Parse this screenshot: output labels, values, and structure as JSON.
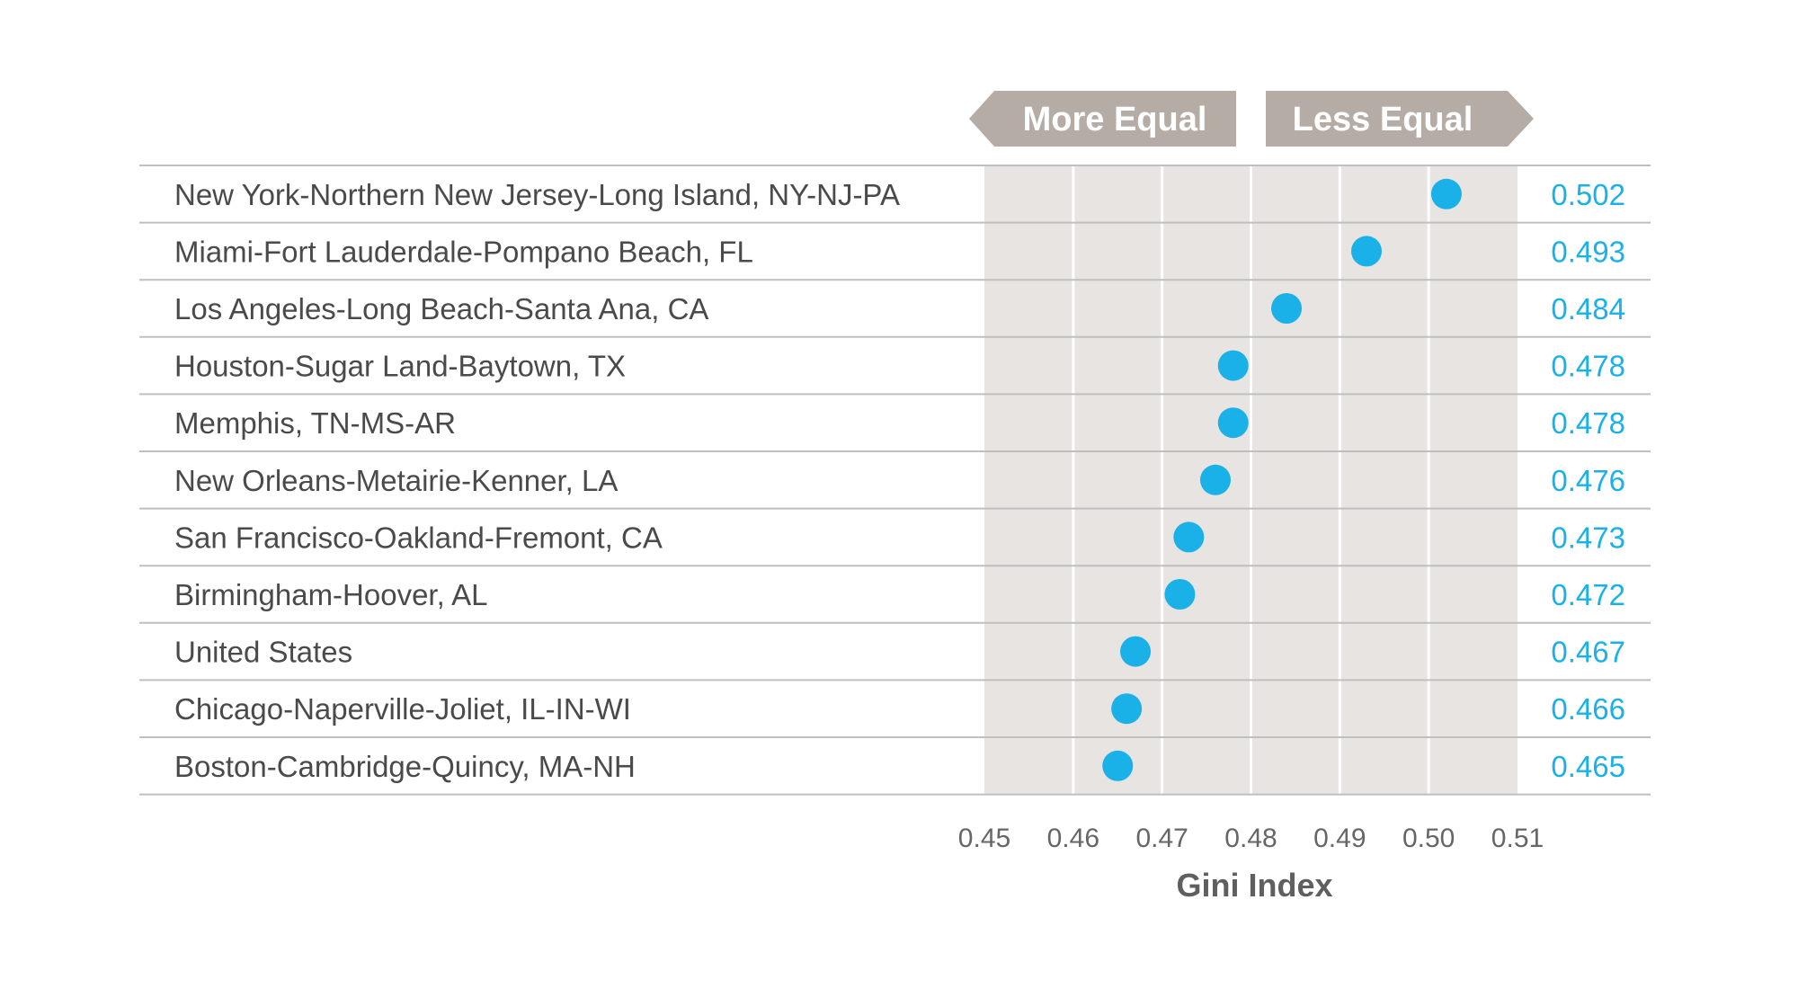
{
  "chart_data": {
    "type": "scatter",
    "categories": [
      "New York-Northern New Jersey-Long Island, NY-NJ-PA",
      "Miami-Fort Lauderdale-Pompano Beach, FL",
      "Los Angeles-Long Beach-Santa Ana, CA",
      "Houston-Sugar Land-Baytown, TX",
      "Memphis, TN-MS-AR",
      "New Orleans-Metairie-Kenner, LA",
      "San Francisco-Oakland-Fremont, CA",
      "Birmingham-Hoover, AL",
      "United States",
      "Chicago-Naperville-Joliet, IL-IN-WI",
      "Boston-Cambridge-Quincy, MA-NH"
    ],
    "values": [
      0.502,
      0.493,
      0.484,
      0.478,
      0.478,
      0.476,
      0.473,
      0.472,
      0.467,
      0.466,
      0.465
    ],
    "value_labels": [
      "0.502",
      "0.493",
      "0.484",
      "0.478",
      "0.478",
      "0.476",
      "0.473",
      "0.472",
      "0.467",
      "0.466",
      "0.465"
    ],
    "xlabel": "Gini Index",
    "xlim": [
      0.45,
      0.51
    ],
    "xticks": [
      "0.45",
      "0.46",
      "0.47",
      "0.48",
      "0.49",
      "0.50",
      "0.51"
    ],
    "grid": true,
    "legend": "none",
    "arrows": {
      "left": "More Equal",
      "right": "Less Equal"
    },
    "colors": {
      "point": "#1ab0e8",
      "value_text": "#1ab0e8",
      "plot_bg": "#e7e4e2",
      "arrow_fill": "#b5aca6",
      "row_rule": "#bfbfbf",
      "label_text": "#4a4a4a"
    }
  }
}
